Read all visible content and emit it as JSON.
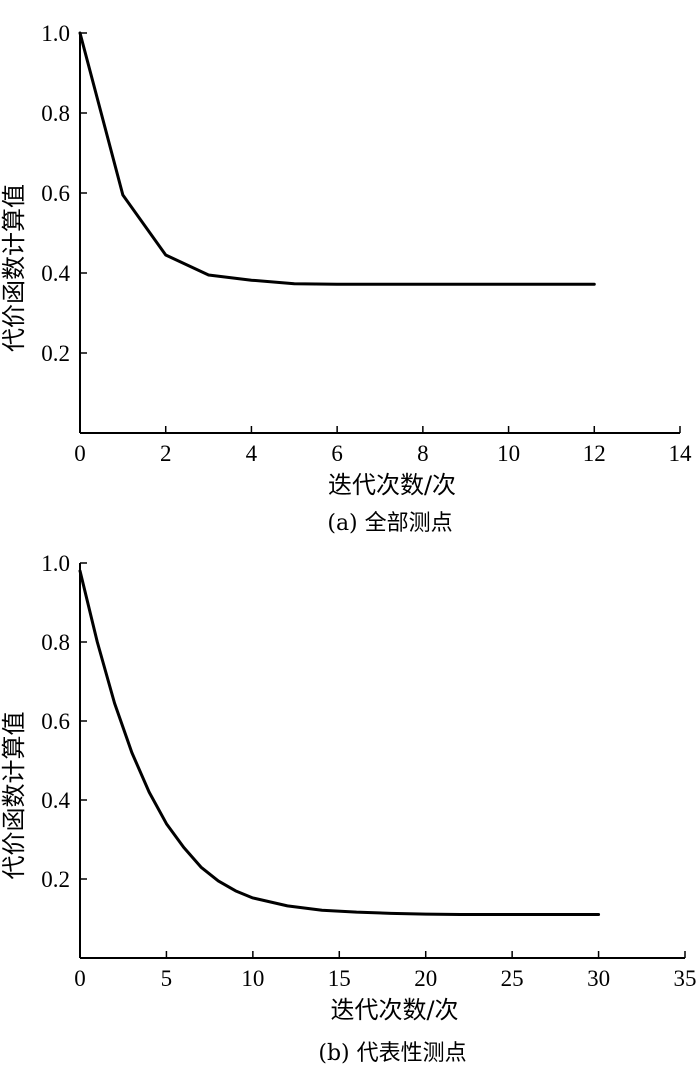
{
  "chart_data": [
    {
      "type": "line",
      "caption": "(a) 全部测点",
      "xlabel": "迭代次数/次",
      "ylabel": "代价函数计算值",
      "xlim": [
        0,
        14
      ],
      "ylim": [
        0,
        1.0
      ],
      "xticks": [
        0,
        2,
        4,
        6,
        8,
        10,
        12,
        14
      ],
      "xtick_labels": [
        "0",
        "2",
        "4",
        "6",
        "8",
        "10",
        "12",
        "14"
      ],
      "yticks": [
        0.2,
        0.4,
        0.6,
        0.8,
        1.0
      ],
      "ytick_labels": [
        "0.2",
        "0.4",
        "0.6",
        "0.8",
        "1.0"
      ],
      "grid": false,
      "series": [
        {
          "color": "#000000",
          "x": [
            0,
            1,
            2,
            3,
            4,
            5,
            6,
            7,
            8,
            9,
            10,
            11,
            12
          ],
          "y": [
            1.0,
            0.595,
            0.445,
            0.395,
            0.382,
            0.373,
            0.372,
            0.372,
            0.372,
            0.372,
            0.372,
            0.372,
            0.372
          ]
        }
      ]
    },
    {
      "type": "line",
      "caption": "(b) 代表性测点",
      "xlabel": "迭代次数/次",
      "ylabel": "代价函数计算值",
      "xlim": [
        0,
        35
      ],
      "ylim": [
        0,
        1.0
      ],
      "xticks": [
        0,
        5,
        10,
        15,
        20,
        25,
        30,
        35
      ],
      "xtick_labels": [
        "0",
        "5",
        "10",
        "15",
        "20",
        "25",
        "30",
        "35"
      ],
      "yticks": [
        0.2,
        0.4,
        0.6,
        0.8,
        1.0
      ],
      "ytick_labels": [
        "0.2",
        "0.4",
        "0.6",
        "0.8",
        "1.0"
      ],
      "grid": false,
      "series": [
        {
          "color": "#000000",
          "x": [
            0,
            1,
            2,
            3,
            4,
            5,
            6,
            7,
            8,
            9,
            10,
            12,
            14,
            16,
            18,
            20,
            22,
            25,
            28,
            30
          ],
          "y": [
            0.98,
            0.8,
            0.645,
            0.52,
            0.42,
            0.34,
            0.28,
            0.23,
            0.195,
            0.17,
            0.152,
            0.132,
            0.121,
            0.116,
            0.113,
            0.111,
            0.11,
            0.11,
            0.11,
            0.11
          ]
        }
      ]
    }
  ]
}
